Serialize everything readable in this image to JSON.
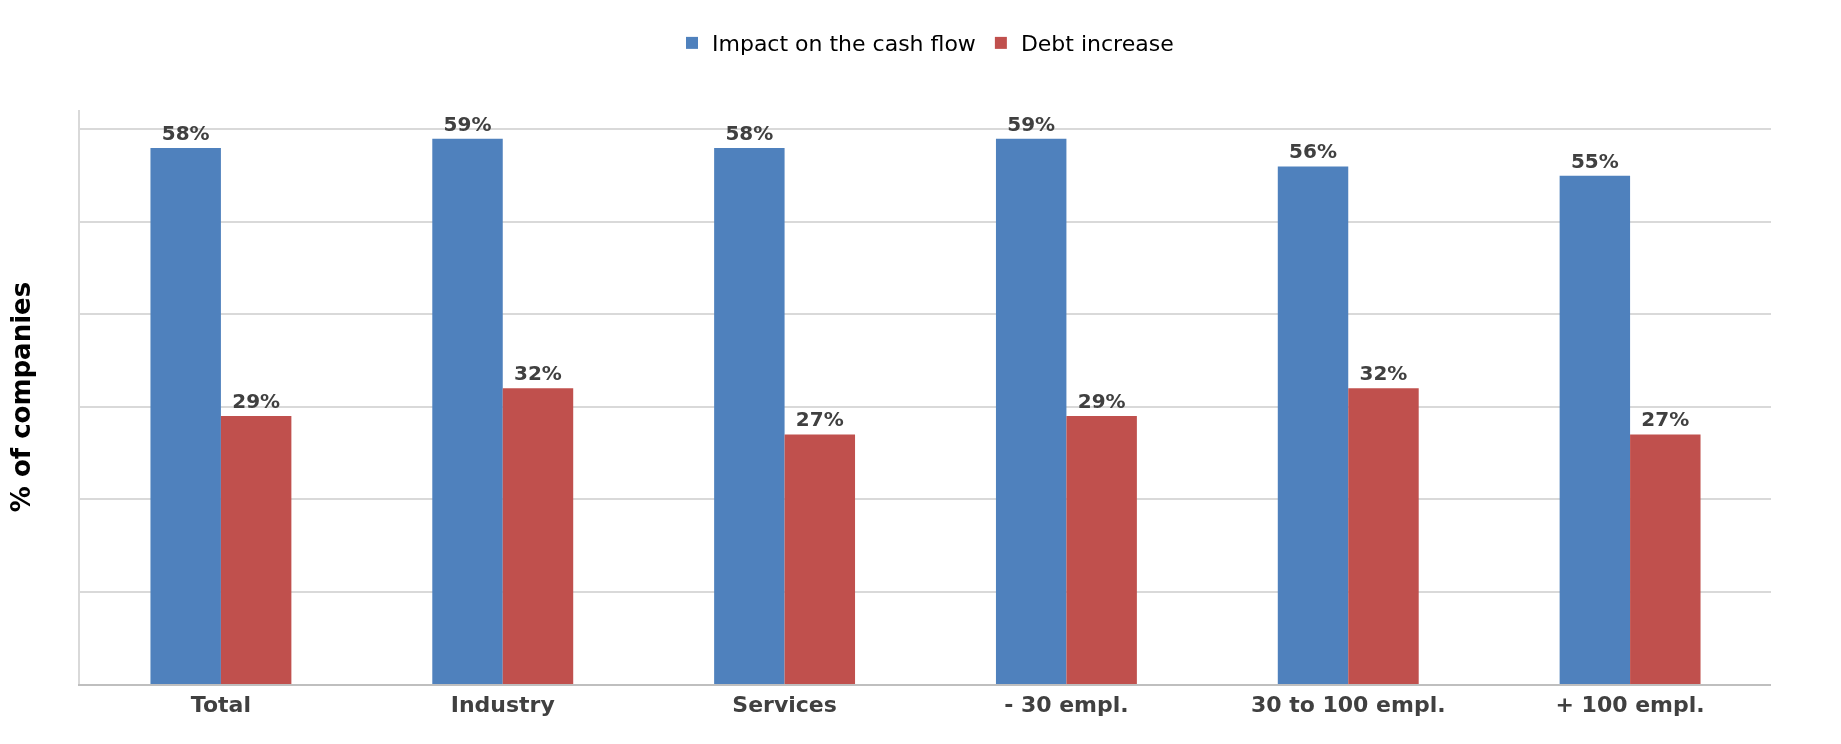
{
  "chart_data": {
    "type": "bar",
    "ylabel": "% of companies",
    "categories": [
      "Total",
      "Industry",
      "Services",
      "- 30 empl.",
      "30 to 100 empl.",
      "+ 100 empl."
    ],
    "series": [
      {
        "name": "Impact on the cash flow",
        "color": "#4f81bd",
        "values": [
          58,
          59,
          58,
          59,
          56,
          55
        ],
        "value_labels": [
          "58%",
          "59%",
          "58%",
          "59%",
          "56%",
          "55%"
        ]
      },
      {
        "name": "Debt increase",
        "color": "#c0504d",
        "values": [
          29,
          32,
          27,
          29,
          32,
          27
        ],
        "value_labels": [
          "29%",
          "32%",
          "27%",
          "29%",
          "32%",
          "27%"
        ]
      }
    ],
    "grid": "y",
    "legend": "top",
    "tick_labels": "x"
  }
}
